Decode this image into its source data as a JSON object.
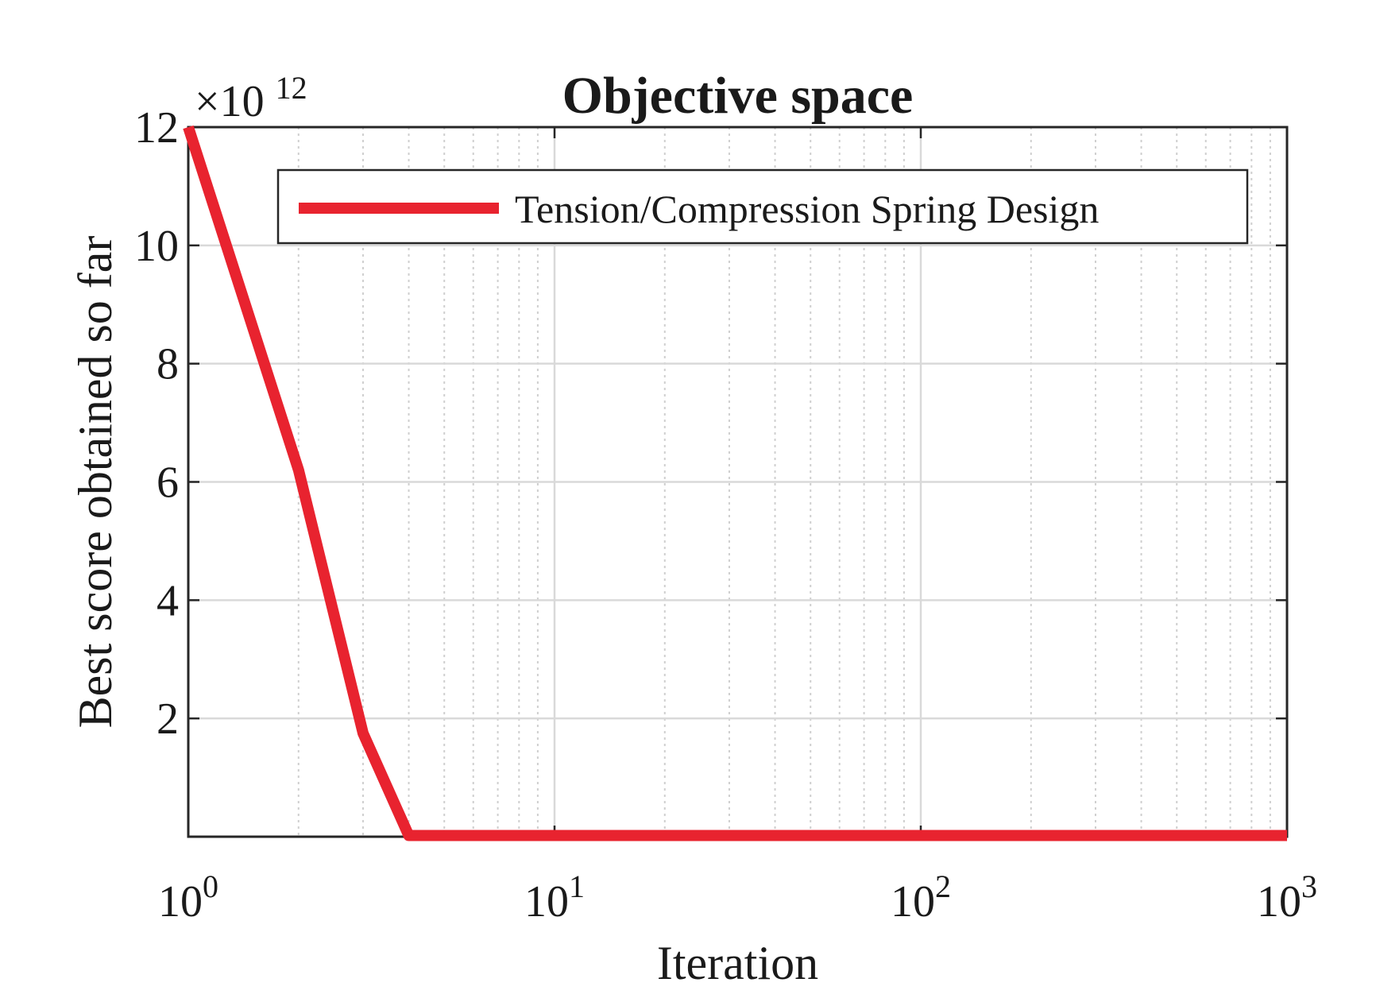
{
  "chart_data": {
    "type": "line",
    "title": "Objective space",
    "xlabel": "Iteration",
    "ylabel": "Best score obtained so far",
    "xscale": "log",
    "xlim": [
      1,
      1000
    ],
    "ylim": [
      0,
      12
    ],
    "y_multiplier_label": "×10",
    "y_multiplier_exponent": "12",
    "x_ticks": [
      {
        "value": 1,
        "base": "10",
        "exp": "0"
      },
      {
        "value": 10,
        "base": "10",
        "exp": "1"
      },
      {
        "value": 100,
        "base": "10",
        "exp": "2"
      },
      {
        "value": 1000,
        "base": "10",
        "exp": "3"
      }
    ],
    "y_ticks": [
      {
        "value": 2,
        "label": "2"
      },
      {
        "value": 4,
        "label": "4"
      },
      {
        "value": 6,
        "label": "6"
      },
      {
        "value": 8,
        "label": "8"
      },
      {
        "value": 10,
        "label": "10"
      },
      {
        "value": 12,
        "label": "12"
      }
    ],
    "grid": true,
    "legend_position": "top-right",
    "series": [
      {
        "name": "Tension/Compression Spring Design",
        "color": "#e8232f",
        "x": [
          1,
          2,
          3,
          4,
          1000
        ],
        "y": [
          12,
          6.2,
          1.75,
          0.02,
          0.02
        ]
      }
    ]
  }
}
